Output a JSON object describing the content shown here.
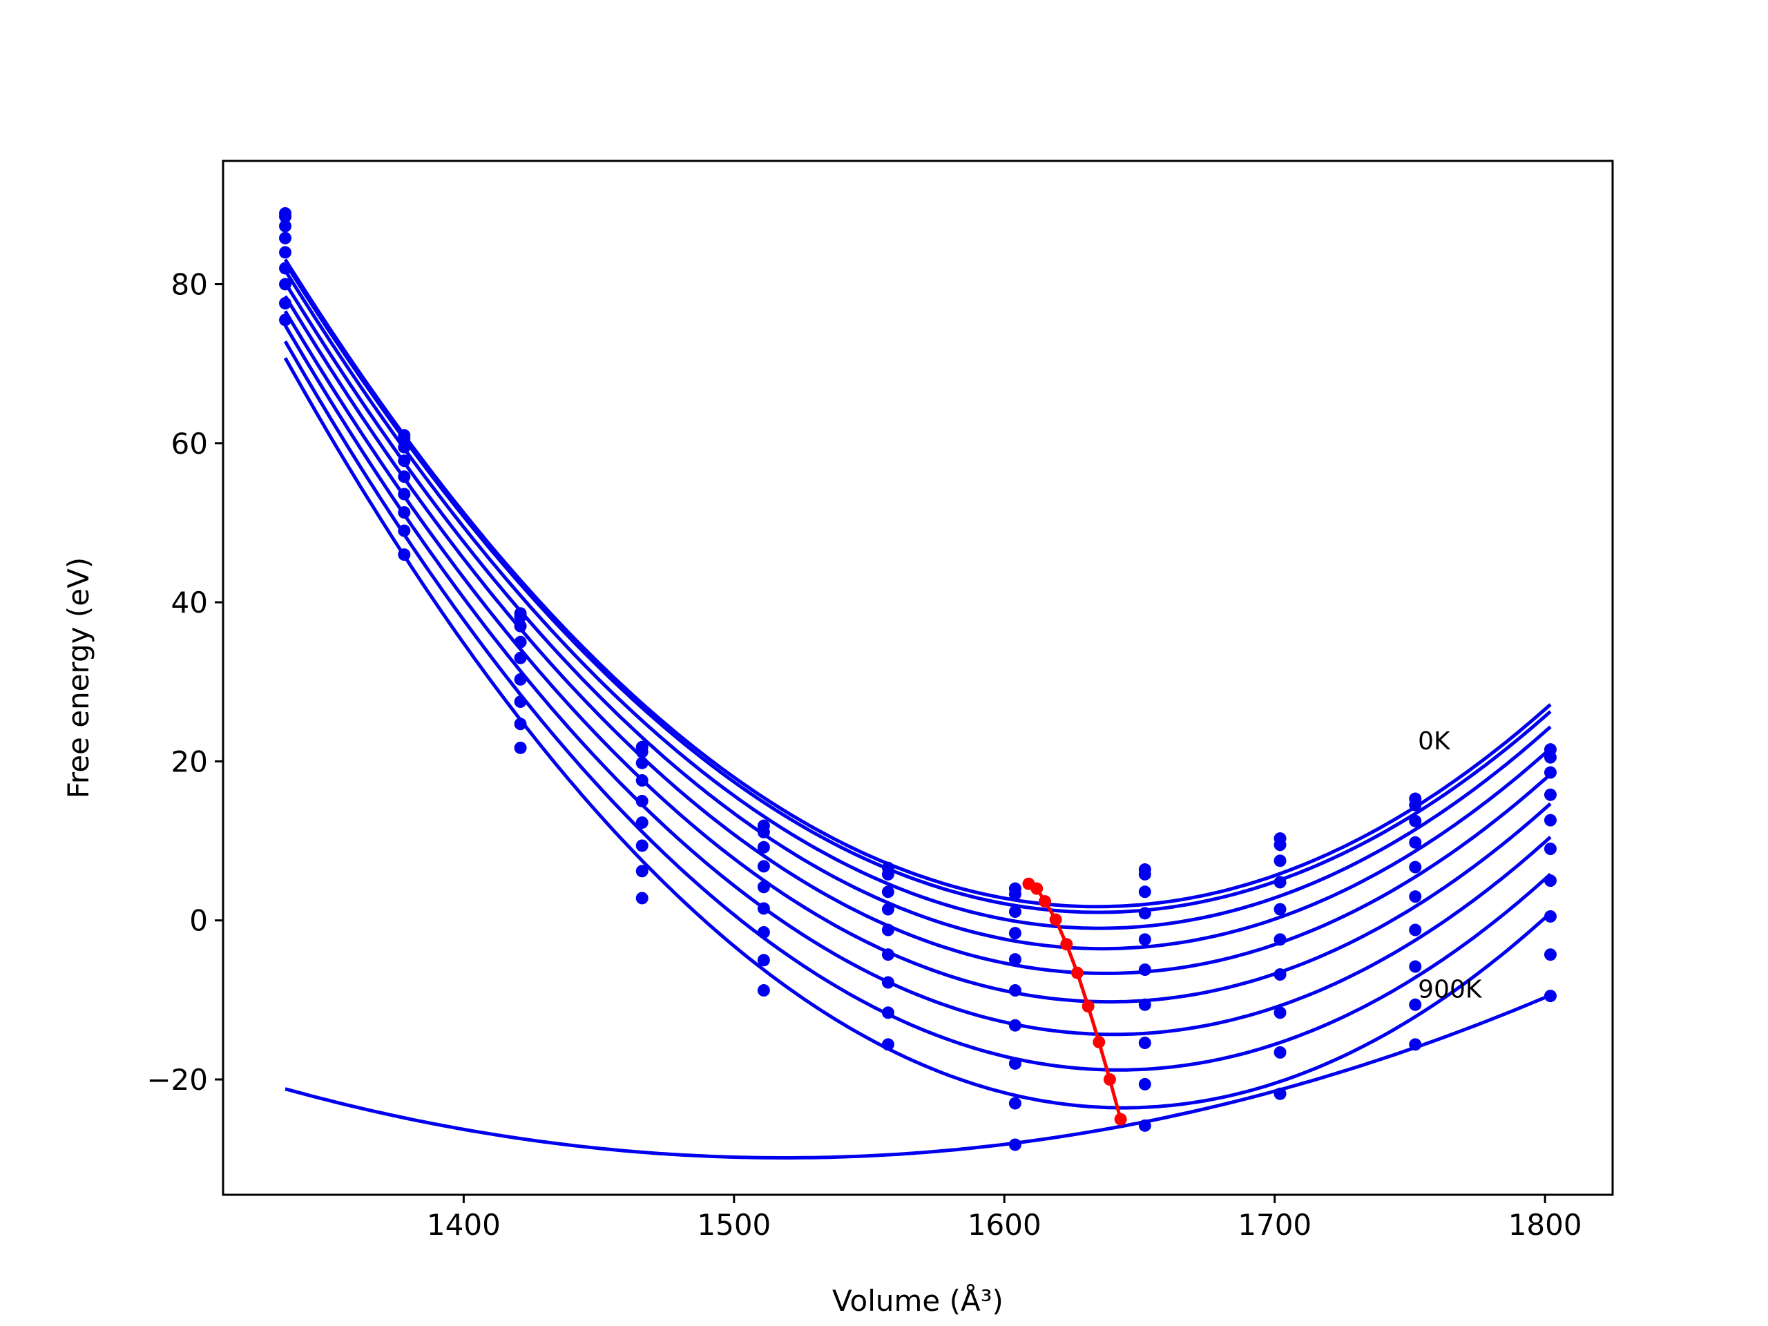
{
  "chart_data": {
    "type": "line",
    "xlabel": "Volume (Å³)",
    "ylabel": "Free energy (eV)",
    "xlim": [
      1311,
      1825
    ],
    "ylim": [
      -34.5,
      95.5
    ],
    "xticks": [
      1400,
      1500,
      1600,
      1700,
      1800
    ],
    "yticks": [
      -20,
      0,
      20,
      40,
      60,
      80
    ],
    "xtick_labels": [
      "1400",
      "1500",
      "1600",
      "1700",
      "1800"
    ],
    "ytick_labels": [
      "−20",
      "0",
      "20",
      "40",
      "60",
      "80"
    ],
    "grid": false,
    "colors": {
      "curves": "#0000ee",
      "equilibrium": "#ff0000",
      "axes": "#000000"
    },
    "volumes": [
      1334,
      1378,
      1421,
      1466,
      1511,
      1557,
      1604,
      1652,
      1702,
      1752,
      1802
    ],
    "curves": [
      {
        "values": [
          88.9,
          61.0,
          38.6,
          21.8,
          11.9,
          6.6,
          4.0,
          6.4,
          10.3,
          15.3,
          21.5
        ]
      },
      {
        "values": [
          88.5,
          60.6,
          38.2,
          21.2,
          11.1,
          5.8,
          3.3,
          5.8,
          9.5,
          14.5,
          20.5
        ]
      },
      {
        "values": [
          87.3,
          59.5,
          37.0,
          19.8,
          9.2,
          3.6,
          1.1,
          3.6,
          7.5,
          12.5,
          18.6
        ]
      },
      {
        "values": [
          85.8,
          57.8,
          35.0,
          17.6,
          6.8,
          1.4,
          -1.6,
          0.9,
          4.8,
          9.8,
          15.8
        ]
      },
      {
        "values": [
          84.0,
          55.8,
          33.0,
          15.0,
          4.2,
          -1.2,
          -4.9,
          -2.4,
          1.4,
          6.7,
          12.6
        ]
      },
      {
        "values": [
          82.0,
          53.6,
          30.3,
          12.3,
          1.5,
          -4.3,
          -8.8,
          -6.2,
          -2.4,
          3.0,
          9.0
        ]
      },
      {
        "values": [
          80.0,
          51.3,
          27.5,
          9.4,
          -1.5,
          -7.8,
          -13.2,
          -10.6,
          -6.8,
          -1.2,
          5.0
        ]
      },
      {
        "values": [
          77.6,
          49.0,
          24.7,
          6.2,
          -5.0,
          -11.6,
          -18.0,
          -15.4,
          -11.6,
          -5.8,
          0.5
        ]
      },
      {
        "values": [
          75.5,
          46.0,
          21.7,
          2.8,
          -8.8,
          -15.6,
          -23.0,
          -20.6,
          -16.6,
          -10.6,
          -4.3
        ]
      },
      {
        "values": [
          null,
          null,
          null,
          null,
          null,
          null,
          -28.2,
          -25.8,
          -21.8,
          -15.6,
          -9.5
        ]
      }
    ],
    "equilibrium_line": {
      "x": [
        1609,
        1612,
        1615,
        1619,
        1623,
        1627,
        1631,
        1635,
        1639,
        1643
      ],
      "y": [
        4.6,
        4.0,
        2.4,
        0.1,
        -3.0,
        -6.6,
        -10.8,
        -15.3,
        -20.0,
        -25.0
      ]
    },
    "annotations": [
      {
        "text": "0K",
        "x": 1753,
        "y": 21.5
      },
      {
        "text": "900K",
        "x": 1753,
        "y": -9.7
      }
    ]
  }
}
